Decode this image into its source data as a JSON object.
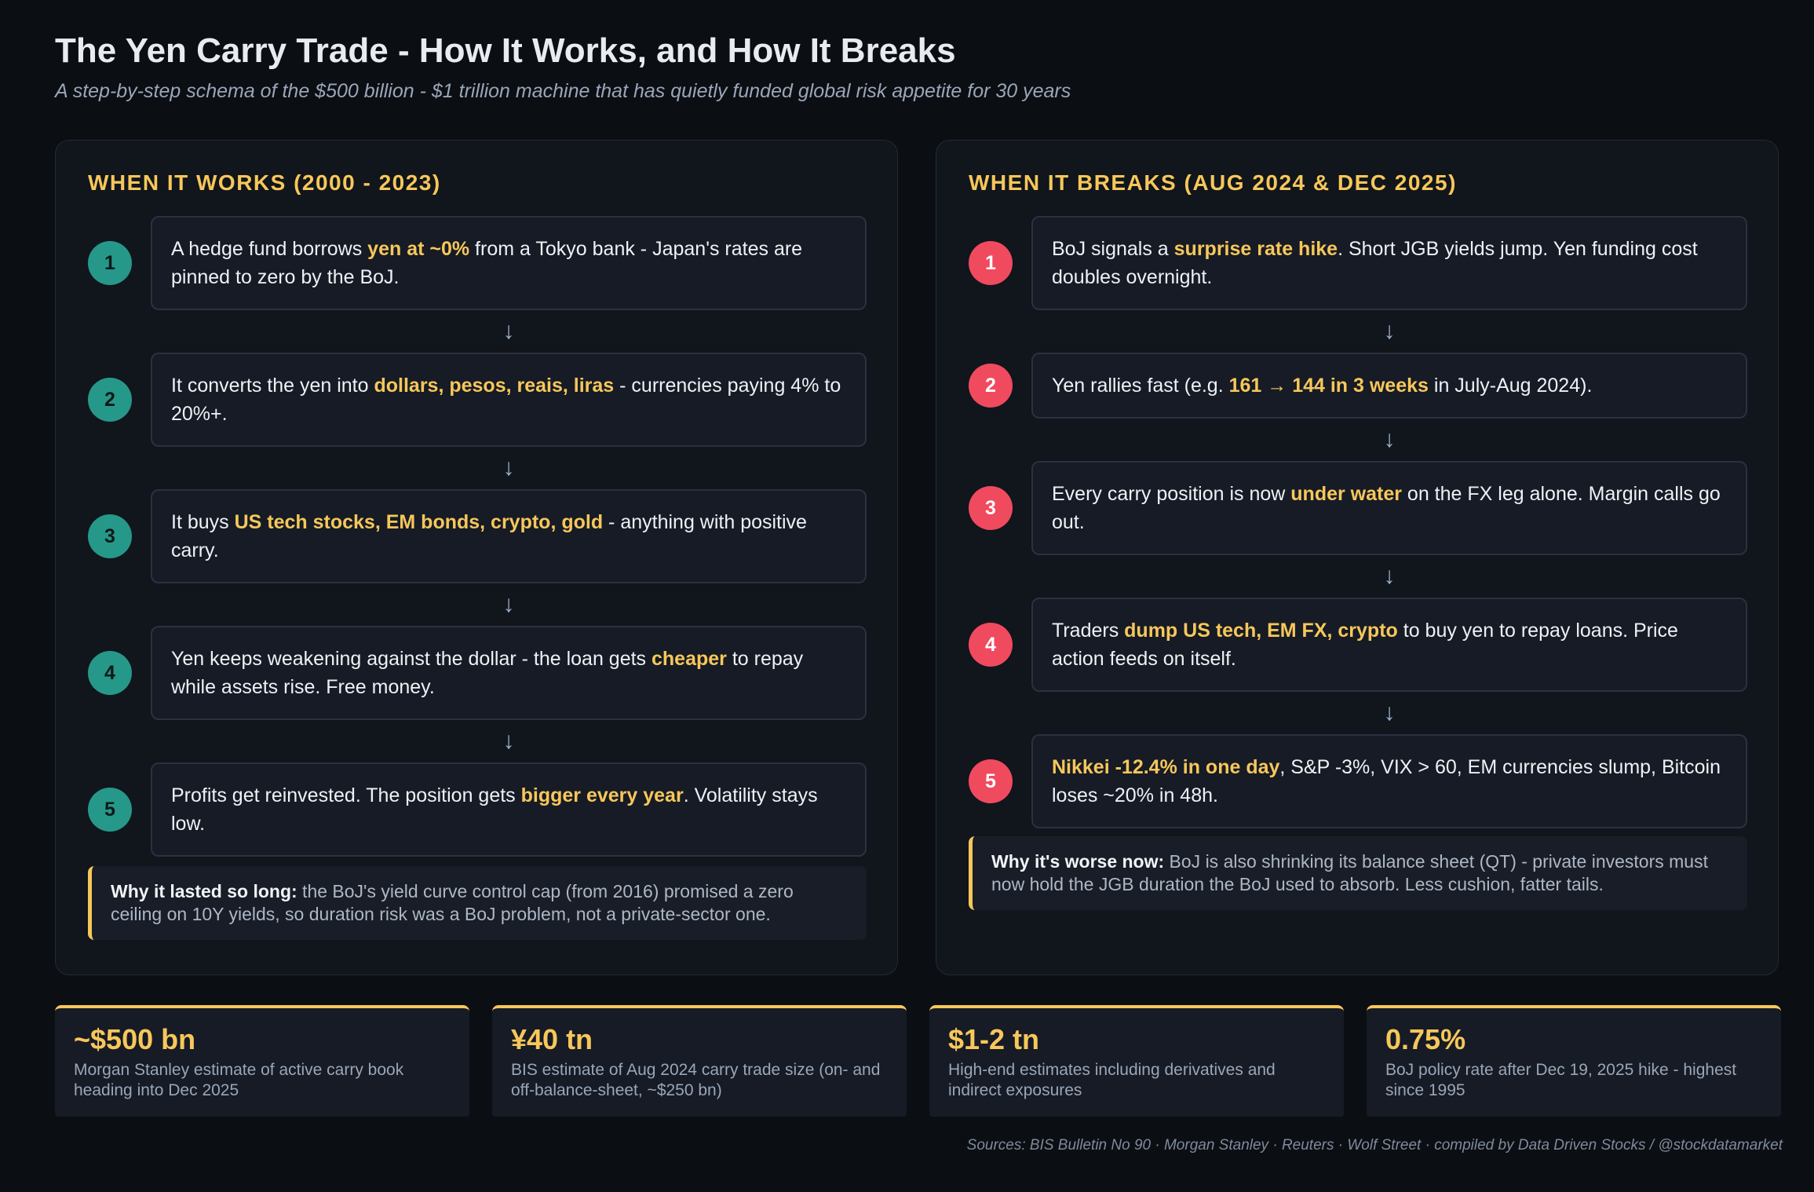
{
  "title": "The Yen Carry Trade - How It Works, and How It Breaks",
  "subtitle": "A step-by-step schema of the $500 billion - $1 trillion machine that has quietly funded global risk appetite for 30 years",
  "colors": {
    "accent": "#f7c75a",
    "works_circle": "#26988a",
    "breaks_circle": "#f04a5f",
    "background": "#0b0e13"
  },
  "arrow_glyph": "↓",
  "works": {
    "heading": "WHEN IT WORKS (2000 - 2023)",
    "steps": [
      {
        "num": "1",
        "pre": "A hedge fund borrows ",
        "hl": "yen at ~0%",
        "post": " from a Tokyo bank - Japan's rates are pinned to zero by the BoJ."
      },
      {
        "num": "2",
        "pre": "It converts the yen into ",
        "hl": "dollars, pesos, reais, liras",
        "post": " - currencies paying 4% to 20%+."
      },
      {
        "num": "3",
        "pre": "It buys ",
        "hl": "US tech stocks, EM bonds, crypto, gold",
        "post": " - anything with positive carry."
      },
      {
        "num": "4",
        "pre": "Yen keeps weakening against the dollar - the loan gets ",
        "hl": "cheaper",
        "post": " to repay while assets rise. Free money."
      },
      {
        "num": "5",
        "pre": "Profits get reinvested. The position gets ",
        "hl": "bigger every year",
        "post": ". Volatility stays low."
      }
    ],
    "note_label": "Why it lasted so long:",
    "note_text": " the BoJ's yield curve control cap (from 2016) promised a zero ceiling on 10Y yields, so duration risk was a BoJ problem, not a private-sector one."
  },
  "breaks": {
    "heading": "WHEN IT BREAKS (AUG 2024 & DEC 2025)",
    "steps": [
      {
        "num": "1",
        "pre": "BoJ signals a ",
        "hl": "surprise rate hike",
        "post": ". Short JGB yields jump. Yen funding cost doubles overnight."
      },
      {
        "num": "2",
        "pre": "Yen rallies fast (e.g. ",
        "hl": "161 → 144 in 3 weeks",
        "post": " in July-Aug 2024)."
      },
      {
        "num": "3",
        "pre": "Every carry position is now ",
        "hl": "under water",
        "post": " on the FX leg alone. Margin calls go out."
      },
      {
        "num": "4",
        "pre": "Traders ",
        "hl": "dump US tech, EM FX, crypto",
        "post": " to buy yen to repay loans. Price action feeds on itself."
      },
      {
        "num": "5",
        "pre": "",
        "hl": "Nikkei -12.4% in one day",
        "post": ", S&P -3%, VIX > 60, EM currencies slump, Bitcoin loses ~20% in 48h."
      }
    ],
    "note_label": "Why it's worse now:",
    "note_text": " BoJ is also shrinking its balance sheet (QT) - private investors must now hold the JGB duration the BoJ used to absorb. Less cushion, fatter tails."
  },
  "stats": [
    {
      "value": "~$500 bn",
      "desc": "Morgan Stanley estimate of active carry book heading into Dec 2025"
    },
    {
      "value": "¥40 tn",
      "desc": "BIS estimate of Aug 2024 carry trade size (on- and off-balance-sheet, ~$250 bn)"
    },
    {
      "value": "$1-2 tn",
      "desc": "High-end estimates including derivatives and indirect exposures"
    },
    {
      "value": "0.75%",
      "desc": "BoJ policy rate after Dec 19, 2025 hike - highest since 1995"
    }
  ],
  "sources": "Sources: BIS Bulletin No 90 · Morgan Stanley · Reuters · Wolf Street · compiled by Data Driven Stocks / @stockdatamarket"
}
